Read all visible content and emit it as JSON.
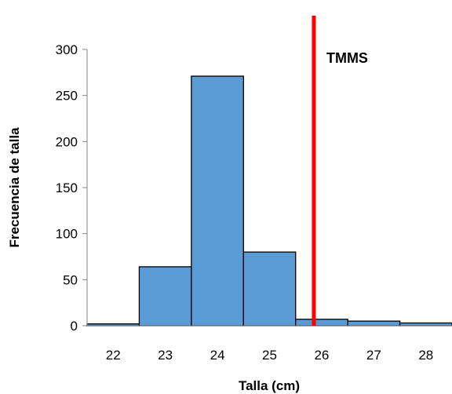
{
  "chart_data": {
    "type": "bar",
    "categories": [
      "22",
      "23",
      "24",
      "25",
      "26",
      "27",
      "28"
    ],
    "values": [
      2,
      64,
      271,
      80,
      7,
      5,
      3
    ],
    "xlabel": "Talla (cm)",
    "ylabel": "Frecuencia de talla",
    "ylim": [
      0,
      300
    ],
    "yticks": [
      0,
      50,
      100,
      150,
      200,
      250,
      300
    ],
    "grid": false,
    "bar_color": "#5b9bd5",
    "bar_edge_color": "#000000",
    "reference_line": {
      "label": "TMMS",
      "x": 25.85,
      "color": "#ff0000"
    }
  }
}
